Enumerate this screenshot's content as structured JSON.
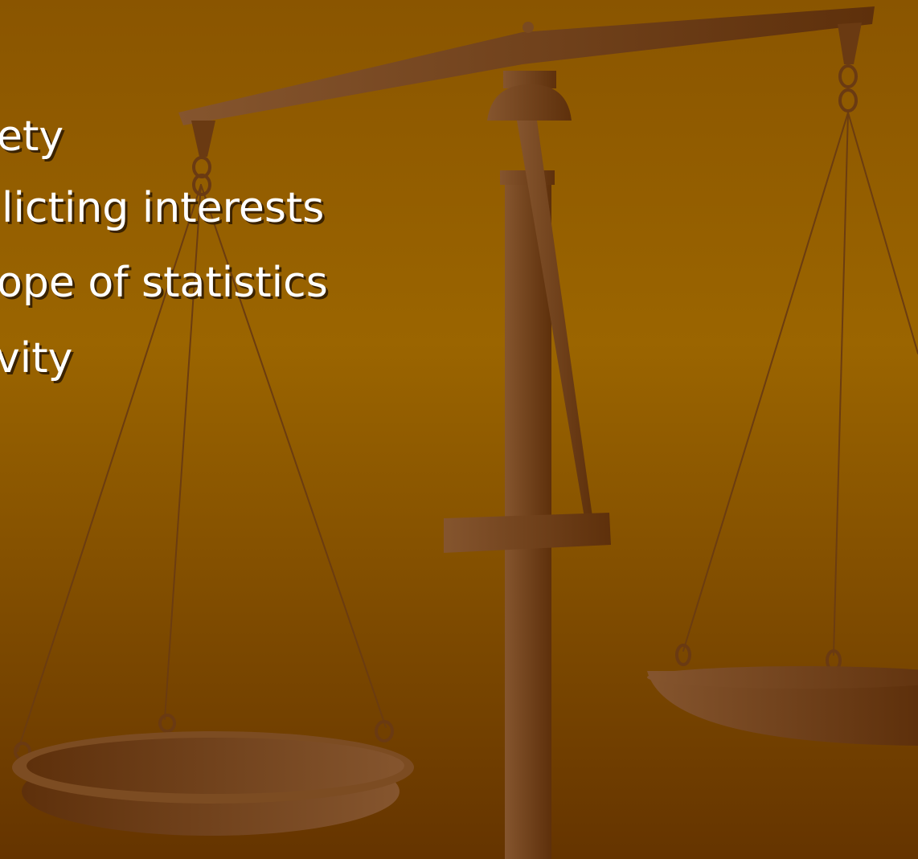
{
  "bullets": [
    "ety",
    "licting interests",
    "ope of statistics",
    "vity"
  ]
}
